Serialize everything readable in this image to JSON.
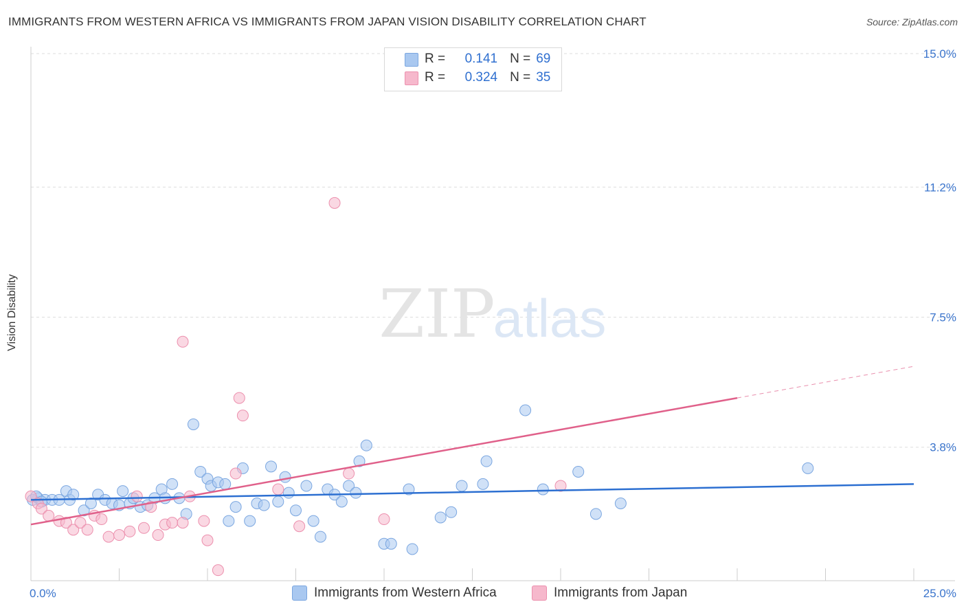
{
  "title": "IMMIGRANTS FROM WESTERN AFRICA VS IMMIGRANTS FROM JAPAN VISION DISABILITY CORRELATION CHART",
  "source": "Source: ZipAtlas.com",
  "watermark": {
    "zip": "ZIP",
    "atlas": "atlas"
  },
  "legend": {
    "r_label": "R =",
    "n_label": "N =",
    "rows": [
      {
        "r": "0.141",
        "n": "69",
        "color": "#a9c8f0"
      },
      {
        "r": "0.324",
        "n": "35",
        "color": "#f6b8cc"
      }
    ]
  },
  "bottom_legend": [
    {
      "label": "Immigrants from Western Africa",
      "color": "#a9c8f0"
    },
    {
      "label": "Immigrants from Japan",
      "color": "#f6b8cc"
    }
  ],
  "chart_data": {
    "type": "scatter",
    "title": "IMMIGRANTS FROM WESTERN AFRICA VS IMMIGRANTS FROM JAPAN VISION DISABILITY CORRELATION CHART",
    "xlabel": "",
    "ylabel": "Vision Disability",
    "xlim": [
      0,
      25
    ],
    "ylim": [
      0,
      15
    ],
    "x_tick_labels": [
      {
        "value": 0,
        "label": "0.0%"
      },
      {
        "value": 25,
        "label": "25.0%"
      }
    ],
    "y_tick_labels": [
      {
        "value": 15.0,
        "label": "15.0%"
      },
      {
        "value": 11.2,
        "label": "11.2%"
      },
      {
        "value": 7.5,
        "label": "7.5%"
      },
      {
        "value": 3.8,
        "label": "3.8%"
      }
    ],
    "grid": true,
    "legend_position": "top-center",
    "series": [
      {
        "name": "Immigrants from Western Africa",
        "color": "#a9c8f0",
        "stroke": "#7aa6e0",
        "trend_color": "#2c6fd1",
        "r": 0.141,
        "n": 69,
        "trend": {
          "x": [
            0,
            25
          ],
          "y": [
            2.3,
            2.75
          ]
        },
        "points": [
          [
            0.2,
            2.35
          ],
          [
            0.4,
            2.3
          ],
          [
            0.6,
            2.3
          ],
          [
            0.8,
            2.3
          ],
          [
            1.0,
            2.55
          ],
          [
            1.1,
            2.3
          ],
          [
            1.2,
            2.45
          ],
          [
            1.5,
            2.0
          ],
          [
            1.7,
            2.2
          ],
          [
            1.9,
            2.45
          ],
          [
            2.1,
            2.3
          ],
          [
            2.3,
            2.2
          ],
          [
            2.5,
            2.15
          ],
          [
            2.6,
            2.55
          ],
          [
            2.8,
            2.2
          ],
          [
            2.9,
            2.35
          ],
          [
            3.1,
            2.1
          ],
          [
            3.3,
            2.15
          ],
          [
            3.5,
            2.35
          ],
          [
            3.7,
            2.6
          ],
          [
            3.8,
            2.35
          ],
          [
            4.0,
            2.75
          ],
          [
            4.2,
            2.35
          ],
          [
            4.4,
            1.9
          ],
          [
            4.6,
            4.45
          ],
          [
            4.8,
            3.1
          ],
          [
            5.0,
            2.9
          ],
          [
            5.1,
            2.7
          ],
          [
            5.3,
            2.8
          ],
          [
            5.5,
            2.75
          ],
          [
            5.6,
            1.7
          ],
          [
            5.8,
            2.1
          ],
          [
            6.0,
            3.2
          ],
          [
            6.2,
            1.7
          ],
          [
            6.4,
            2.2
          ],
          [
            6.6,
            2.15
          ],
          [
            6.8,
            3.25
          ],
          [
            7.0,
            2.25
          ],
          [
            7.2,
            2.95
          ],
          [
            7.3,
            2.5
          ],
          [
            7.5,
            2.0
          ],
          [
            7.8,
            2.7
          ],
          [
            8.0,
            1.7
          ],
          [
            8.2,
            1.25
          ],
          [
            8.4,
            2.6
          ],
          [
            8.6,
            2.45
          ],
          [
            8.8,
            2.25
          ],
          [
            9.0,
            2.7
          ],
          [
            9.2,
            2.5
          ],
          [
            9.3,
            3.4
          ],
          [
            9.5,
            3.85
          ],
          [
            10.0,
            1.05
          ],
          [
            10.2,
            1.05
          ],
          [
            10.7,
            2.6
          ],
          [
            10.8,
            0.9
          ],
          [
            11.6,
            1.8
          ],
          [
            11.9,
            1.95
          ],
          [
            12.2,
            2.7
          ],
          [
            12.8,
            2.75
          ],
          [
            12.9,
            3.4
          ],
          [
            14.0,
            4.85
          ],
          [
            14.5,
            2.6
          ],
          [
            15.5,
            3.1
          ],
          [
            16.0,
            1.9
          ],
          [
            16.7,
            2.2
          ],
          [
            22.0,
            3.2
          ],
          [
            0.05,
            2.3
          ],
          [
            0.15,
            2.4
          ],
          [
            0.3,
            2.25
          ]
        ]
      },
      {
        "name": "Immigrants from Japan",
        "color": "#f6b8cc",
        "stroke": "#ec8fad",
        "trend_color": "#e0608a",
        "r": 0.324,
        "n": 35,
        "trend": {
          "x": [
            0,
            20
          ],
          "y": [
            1.6,
            5.2
          ]
        },
        "trend_ext": {
          "x": [
            20,
            25
          ],
          "y": [
            5.2,
            6.1
          ]
        },
        "points": [
          [
            0.0,
            2.4
          ],
          [
            0.2,
            2.2
          ],
          [
            0.3,
            2.05
          ],
          [
            0.5,
            1.85
          ],
          [
            0.8,
            1.7
          ],
          [
            1.0,
            1.65
          ],
          [
            1.2,
            1.45
          ],
          [
            1.4,
            1.65
          ],
          [
            1.6,
            1.45
          ],
          [
            1.8,
            1.85
          ],
          [
            2.0,
            1.75
          ],
          [
            2.2,
            1.25
          ],
          [
            2.5,
            1.3
          ],
          [
            2.8,
            1.4
          ],
          [
            3.0,
            2.4
          ],
          [
            3.2,
            1.5
          ],
          [
            3.4,
            2.1
          ],
          [
            3.6,
            1.3
          ],
          [
            3.8,
            1.6
          ],
          [
            4.0,
            1.65
          ],
          [
            4.3,
            1.65
          ],
          [
            4.5,
            2.4
          ],
          [
            4.9,
            1.7
          ],
          [
            5.0,
            1.15
          ],
          [
            4.3,
            6.8
          ],
          [
            5.3,
            0.3
          ],
          [
            5.8,
            3.05
          ],
          [
            5.9,
            5.2
          ],
          [
            6.0,
            4.7
          ],
          [
            7.0,
            2.6
          ],
          [
            7.6,
            1.55
          ],
          [
            8.6,
            10.75
          ],
          [
            9.0,
            3.05
          ],
          [
            10.0,
            1.75
          ],
          [
            15.0,
            2.7
          ]
        ]
      }
    ]
  }
}
